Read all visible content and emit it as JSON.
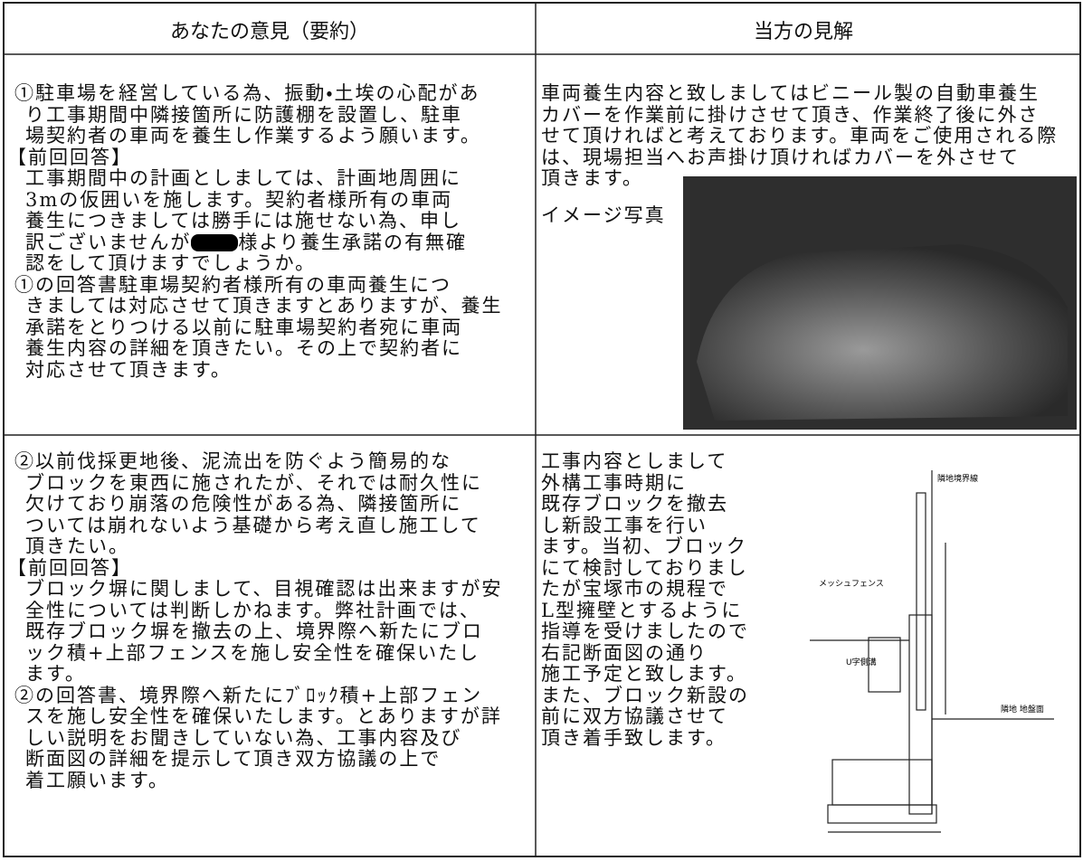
{
  "table": {
    "header": [
      "あなたの意見（要約）",
      "当方の見解"
    ],
    "rows": [
      {
        "left": [
          {
            "lines": [
              "①駐車場を経営している為、振動・土埃の心配があ",
              "り工事期間中隣接箇所に防護棚を設置し、駐車",
              "場契約者の車両を養生し作業するよう願います。"
            ]
          },
          {
            "lines": [
              "【前回回答】",
              "工事期間中の計画としましては、計画地周囲に",
              "3mの仮囲いを施します。契約者様所有の車両",
              "養生につきましては勝手には施せない為、申し",
              {
                "before": "訳ございませんが",
                "after": "様より養生承諾の有無確"
              },
              "認をして頂けますでしょうか。"
            ]
          },
          {
            "lines": [
              "①の回答書駐車場契約者様所有の車両養生につ",
              "きましては対応させて頂きますとありますが、養生",
              "承諾をとりつける以前に駐車場契約者宛に車両",
              "養生内容の詳細を頂きたい。その上で契約者に",
              "対応させて頂きます。"
            ]
          }
        ],
        "right": {
          "lines": [
            "車両養生内容と致しましてはビニール製の自動車養生",
            "カバーを作業前に掛けさせて頂き、作業終了後に外さ",
            "せて頂ければと考えております。車両をご使用される際",
            "は、現場担当へお声掛け頂ければカバーを外させて",
            "頂きます。"
          ],
          "photo_caption": "イメージ写真"
        }
      },
      {
        "left": [
          {
            "lines": [
              "②以前伐採更地後、泥流出を防ぐよう簡易的な",
              "ブロックを東西に施されたが、それでは耐久性に",
              "欠けており崩落の危険性がある為、隣接箇所に",
              "ついては崩れないよう基礎から考え直し施工して",
              "頂きたい。"
            ]
          },
          {
            "lines": [
              "【前回回答】",
              "ブロック塀に関しまして、目視確認は出来ますが安",
              "全性については判断しかねます。弊社計画では、",
              "既存ブロック塀を撤去の上、境界際へ新たにブロ",
              "ック積+上部フェンスを施し安全性を確保いたし",
              "ます。"
            ]
          },
          {
            "lines": [
              "②の回答書、境界際へ新たにﾌﾞﾛｯｸ積+上部フェン",
              "スを施し安全性を確保いたします。とありますが詳",
              "しい説明をお聞きしていない為、工事内容及び",
              "断面図の詳細を提示して頂き双方協議の上で",
              "着工願います。"
            ]
          }
        ],
        "right": {
          "lines": [
            "工事内容としまして",
            "外構工事時期に",
            "既存ブロックを撤去",
            "し新設工事を行い",
            "ます。当初、ブロック",
            "にて検討しておりまし",
            "たが宝塚市の規程で",
            "L型擁壁とするように",
            "指導を受けましたので",
            "右記断面図の通り",
            "施工予定と致します。",
            "また、ブロック新設の",
            "前に双方協議させて",
            "頂き着手致します。"
          ],
          "diagram_labels": [
            "隣地境界線",
            "メッシュフェンス",
            "U字側溝",
            "隣地 地盤面"
          ]
        }
      }
    ]
  }
}
